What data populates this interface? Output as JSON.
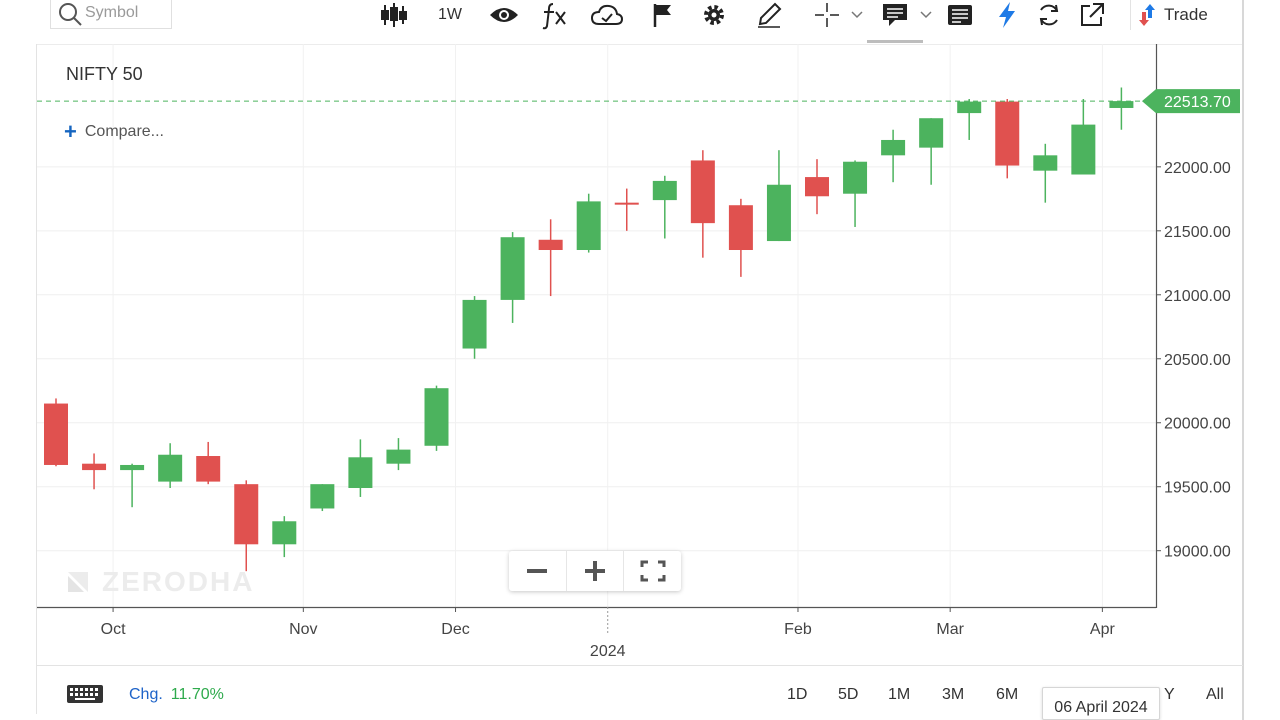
{
  "toolbar": {
    "search_placeholder": "Symbol",
    "interval_label": "1W",
    "trade_label": "Trade"
  },
  "chart_title": "NIFTY 50",
  "compare_label": "Compare...",
  "watermark": "ZERODHA",
  "footer": {
    "chg_label": "Chg.",
    "chg_value": "11.70%",
    "ranges": [
      "1D",
      "5D",
      "1M",
      "3M",
      "6M",
      "Y",
      "All"
    ],
    "hover_date": "06 April 2024"
  },
  "colors": {
    "up": "#4cb35e",
    "down": "#e0514f",
    "accent_blue": "#1565c0",
    "last_price_label": "#4cb35e"
  },
  "icons": [
    "search-icon",
    "candlestick-icon",
    "eye-icon",
    "fx-icon",
    "cloud-sync-icon",
    "flag-icon",
    "gear-icon",
    "pencil-icon",
    "crosshair-icon",
    "comment-icon",
    "news-icon",
    "lightning-icon",
    "refresh-icon",
    "external-link-icon",
    "trade-arrows-icon",
    "keyboard-icon",
    "minus-icon",
    "plus-icon",
    "fullscreen-icon"
  ],
  "chart_data": {
    "type": "candlestick",
    "title": "NIFTY 50",
    "interval": "1W",
    "y_ticks": [
      "19000.00",
      "19500.00",
      "20000.00",
      "20500.00",
      "21000.00",
      "21500.00",
      "22000.00"
    ],
    "x_tick_labels": [
      "Oct",
      "Nov",
      "Dec",
      "2024",
      "Feb",
      "Mar",
      "Apr"
    ],
    "last_price": "22513.70",
    "ylim": [
      18560,
      22960
    ],
    "grid": true,
    "candles": [
      {
        "o": 20150,
        "h": 20190,
        "l": 19660,
        "c": 19670
      },
      {
        "o": 19680,
        "h": 19760,
        "l": 19480,
        "c": 19630
      },
      {
        "o": 19630,
        "h": 19680,
        "l": 19340,
        "c": 19670
      },
      {
        "o": 19540,
        "h": 19840,
        "l": 19490,
        "c": 19750
      },
      {
        "o": 19740,
        "h": 19850,
        "l": 19520,
        "c": 19540
      },
      {
        "o": 19520,
        "h": 19550,
        "l": 18840,
        "c": 19050
      },
      {
        "o": 19050,
        "h": 19270,
        "l": 18950,
        "c": 19230
      },
      {
        "o": 19330,
        "h": 19520,
        "l": 19310,
        "c": 19520
      },
      {
        "o": 19490,
        "h": 19870,
        "l": 19420,
        "c": 19730
      },
      {
        "o": 19680,
        "h": 19880,
        "l": 19630,
        "c": 19790
      },
      {
        "o": 19820,
        "h": 20290,
        "l": 19780,
        "c": 20270
      },
      {
        "o": 20580,
        "h": 20990,
        "l": 20500,
        "c": 20960
      },
      {
        "o": 20960,
        "h": 21490,
        "l": 20780,
        "c": 21450
      },
      {
        "o": 21430,
        "h": 21590,
        "l": 20990,
        "c": 21350
      },
      {
        "o": 21350,
        "h": 21790,
        "l": 21330,
        "c": 21730
      },
      {
        "o": 21720,
        "h": 21830,
        "l": 21500,
        "c": 21710
      },
      {
        "o": 21740,
        "h": 21930,
        "l": 21440,
        "c": 21890
      },
      {
        "o": 22050,
        "h": 22130,
        "l": 21290,
        "c": 21560
      },
      {
        "o": 21700,
        "h": 21750,
        "l": 21140,
        "c": 21350
      },
      {
        "o": 21420,
        "h": 22130,
        "l": 21420,
        "c": 21860
      },
      {
        "o": 21920,
        "h": 22060,
        "l": 21630,
        "c": 21770
      },
      {
        "o": 21790,
        "h": 22050,
        "l": 21530,
        "c": 22040
      },
      {
        "o": 22090,
        "h": 22290,
        "l": 21880,
        "c": 22210
      },
      {
        "o": 22150,
        "h": 22380,
        "l": 21860,
        "c": 22380
      },
      {
        "o": 22420,
        "h": 22530,
        "l": 22210,
        "c": 22510
      },
      {
        "o": 22510,
        "h": 22530,
        "l": 21910,
        "c": 22010
      },
      {
        "o": 21970,
        "h": 22180,
        "l": 21720,
        "c": 22090
      },
      {
        "o": 21940,
        "h": 22530,
        "l": 21940,
        "c": 22330
      },
      {
        "o": 22460,
        "h": 22620,
        "l": 22290,
        "c": 22513.7
      }
    ]
  }
}
